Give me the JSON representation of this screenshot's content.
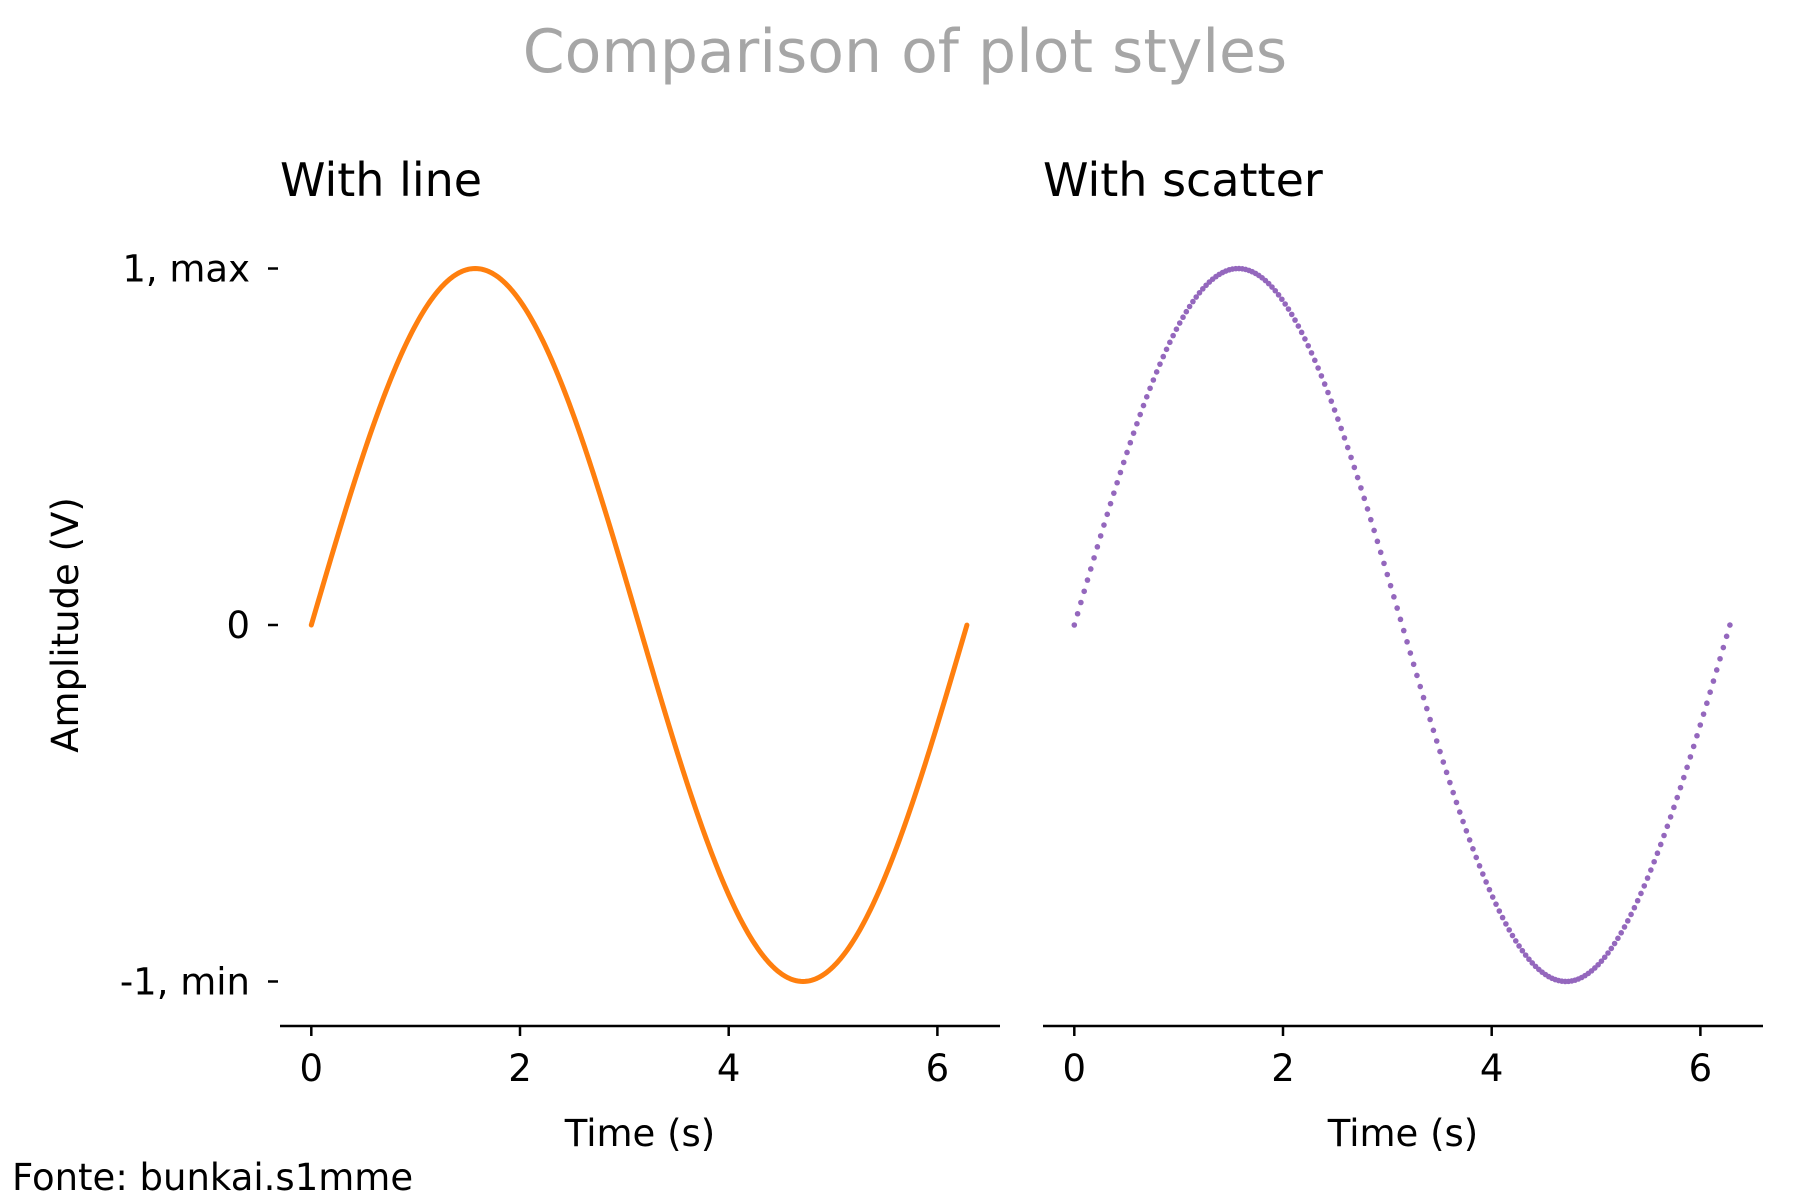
{
  "figure": {
    "title": "Comparison of plot styles",
    "footer": "Fonte: bunkai.s1mme"
  },
  "chart_data": [
    {
      "type": "line",
      "title": "With line",
      "xlabel": "Time (s)",
      "ylabel": "Amplitude (V)",
      "function": "sin(t)",
      "x_range": [
        0,
        6.283
      ],
      "xlim": [
        -0.3,
        6.6
      ],
      "ylim": [
        -1.08,
        1.08
      ],
      "xticks": [
        0,
        2,
        4,
        6
      ],
      "xtick_labels": [
        "0",
        "2",
        "4",
        "6"
      ],
      "yticks": [
        1,
        0,
        -1
      ],
      "ytick_labels": [
        "1, max",
        "0",
        "-1, min"
      ],
      "color": "#ff7f0e",
      "x": [
        0,
        0.3142,
        0.6283,
        0.9425,
        1.2566,
        1.5708,
        1.885,
        2.1991,
        2.5133,
        2.8274,
        3.1416,
        3.4558,
        3.7699,
        4.0841,
        4.3982,
        4.7124,
        5.0265,
        5.3407,
        5.6549,
        5.969,
        6.2832
      ],
      "y": [
        0,
        0.309,
        0.5878,
        0.809,
        0.9511,
        1,
        0.9511,
        0.809,
        0.5878,
        0.309,
        0,
        -0.309,
        -0.5878,
        -0.809,
        -0.9511,
        -1,
        -0.9511,
        -0.809,
        -0.5878,
        -0.309,
        0
      ],
      "grid": false
    },
    {
      "type": "scatter",
      "title": "With scatter",
      "xlabel": "Time (s)",
      "function": "sin(t)",
      "x_range": [
        0,
        6.283
      ],
      "n_points": 200,
      "xlim": [
        -0.3,
        6.6
      ],
      "ylim": [
        -1.08,
        1.08
      ],
      "xticks": [
        0,
        2,
        4,
        6
      ],
      "xtick_labels": [
        "0",
        "2",
        "4",
        "6"
      ],
      "color": "#9467bd",
      "x": [
        0,
        0.3142,
        0.6283,
        0.9425,
        1.2566,
        1.5708,
        1.885,
        2.1991,
        2.5133,
        2.8274,
        3.1416,
        3.4558,
        3.7699,
        4.0841,
        4.3982,
        4.7124,
        5.0265,
        5.3407,
        5.6549,
        5.969,
        6.2832
      ],
      "y": [
        0,
        0.309,
        0.5878,
        0.809,
        0.9511,
        1,
        0.9511,
        0.809,
        0.5878,
        0.309,
        0,
        -0.309,
        -0.5878,
        -0.809,
        -0.9511,
        -1,
        -0.9511,
        -0.809,
        -0.5878,
        -0.309,
        0
      ],
      "grid": false
    }
  ]
}
